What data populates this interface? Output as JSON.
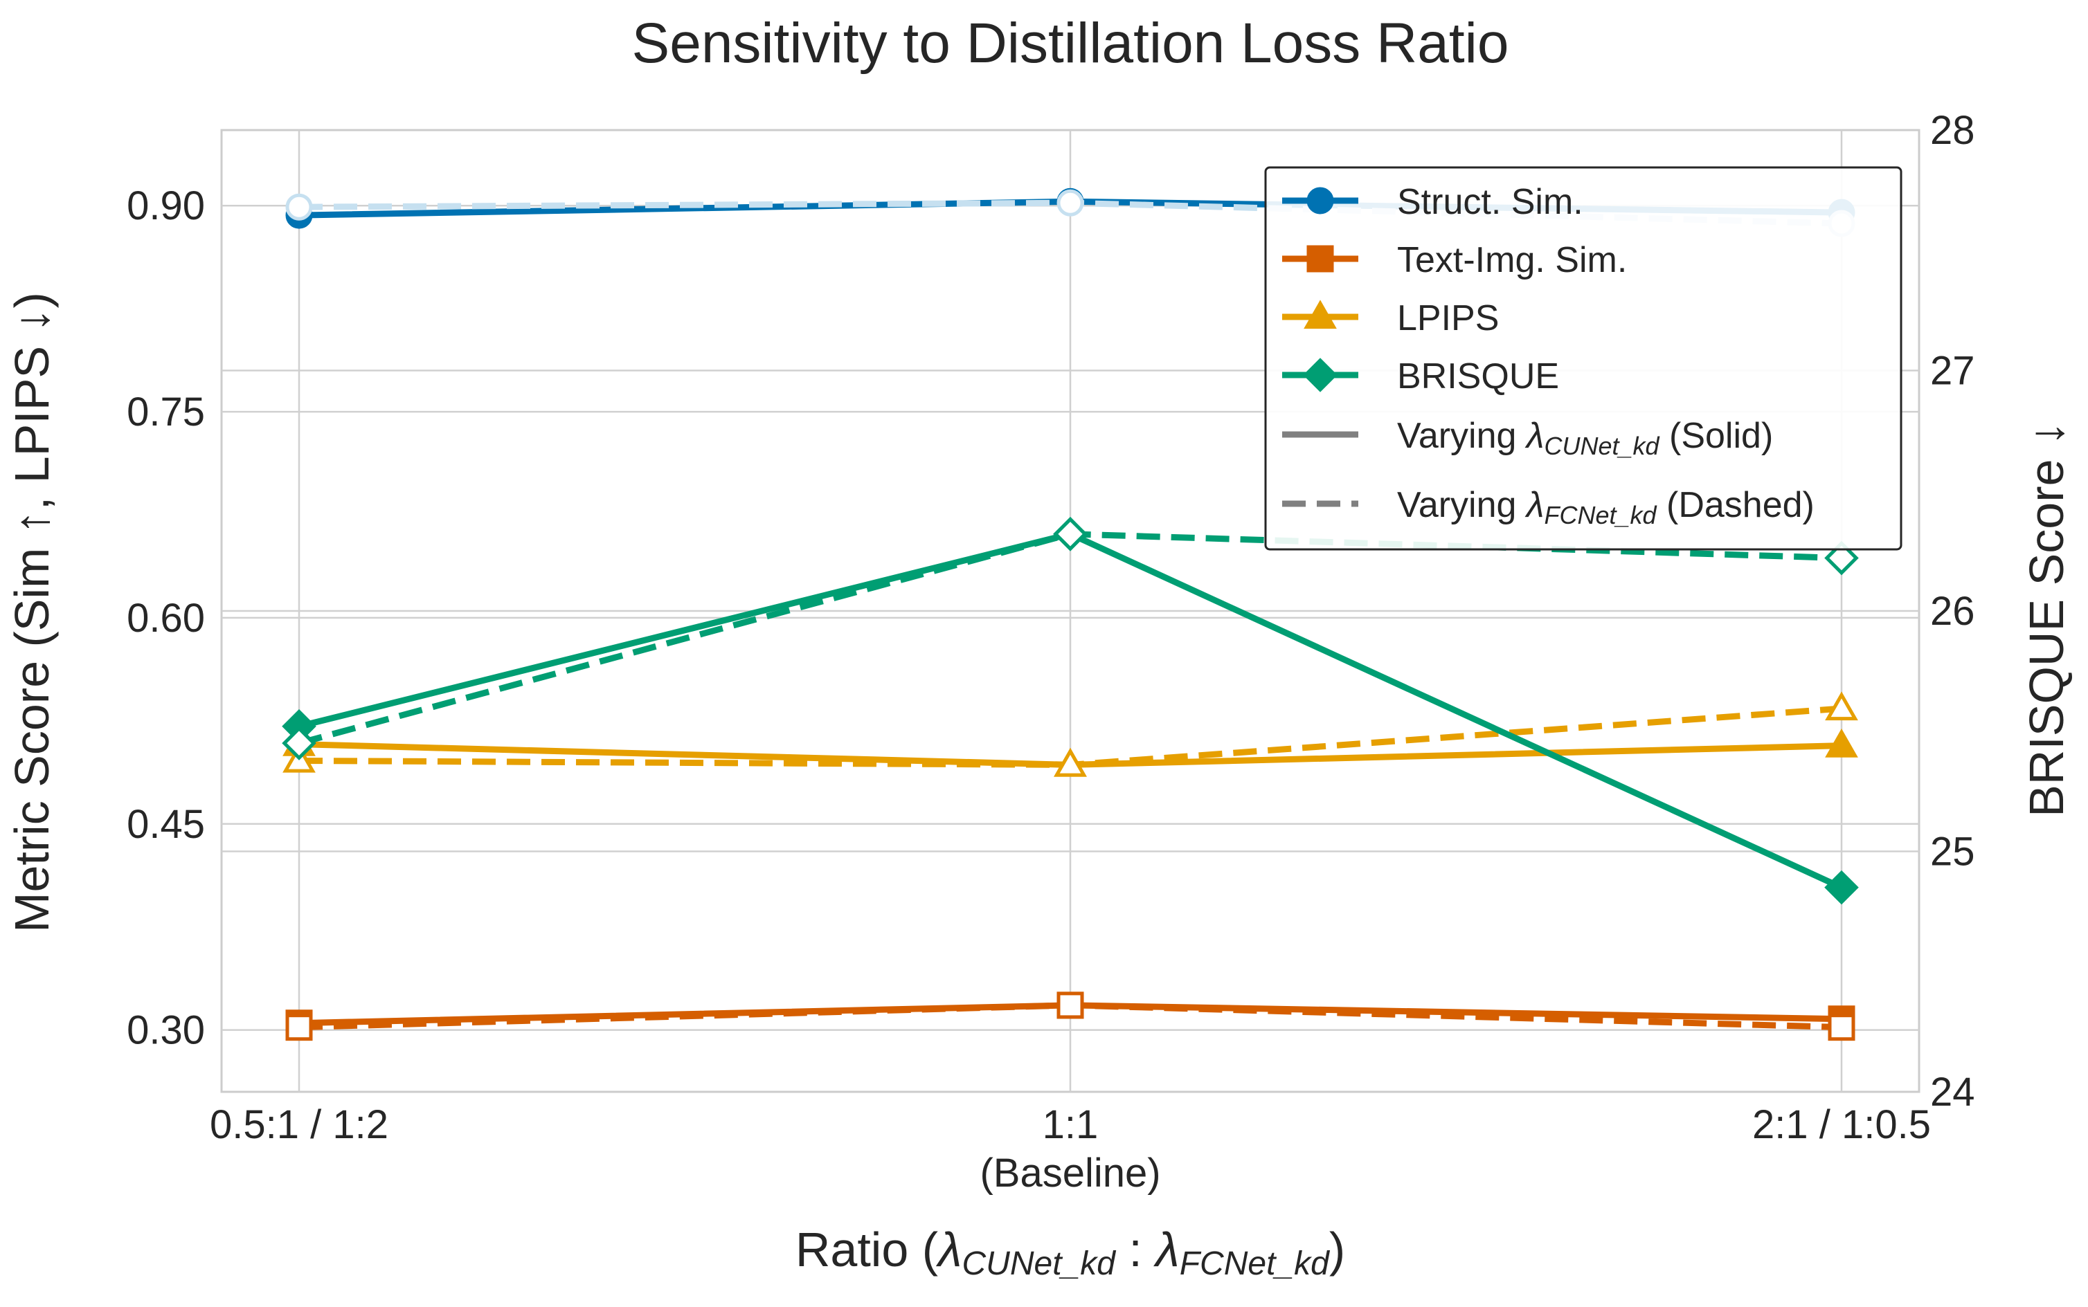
{
  "chart_data": {
    "type": "line",
    "title": "Sensitivity to Distillation Loss Ratio",
    "categories": [
      "0.5:1 / 1:2",
      "1:1",
      "2:1 / 1:0.5"
    ],
    "category_sublabels": [
      "",
      "(Baseline)",
      ""
    ],
    "xlabel": {
      "prefix": "Ratio (",
      "lambda": "λ",
      "sub1": "CUNet_kd",
      "colon": " : ",
      "sub2": "FCNet_kd",
      "suffix": ")"
    },
    "ylabel": "Metric Score (Sim ↑, LPIPS ↓)",
    "y2label": "BRISQUE Score ↓",
    "ylim": [
      0.255,
      0.955
    ],
    "yticks": [
      "0.30",
      "0.45",
      "0.60",
      "0.75",
      "0.90"
    ],
    "y2lim": [
      24,
      28
    ],
    "y2ticks": [
      "24",
      "25",
      "26",
      "27",
      "28"
    ],
    "grid": true,
    "legend_position": "top-right",
    "series": [
      {
        "name": "Struct. Sim.",
        "metric": "struct",
        "variant": "solid",
        "axis": "left",
        "color": "#0072B2",
        "marker": "circle",
        "values": [
          0.893,
          0.903,
          0.895
        ]
      },
      {
        "metric": "struct",
        "variant": "dashed",
        "axis": "left",
        "color": "#C6E0F0",
        "marker": "circle",
        "values": [
          0.899,
          0.902,
          0.887
        ]
      },
      {
        "name": "Text-Img. Sim.",
        "metric": "text",
        "variant": "solid",
        "axis": "left",
        "color": "#D55E00",
        "marker": "square",
        "values": [
          0.305,
          0.318,
          0.308
        ]
      },
      {
        "metric": "text",
        "variant": "dashed",
        "axis": "left",
        "color": "#D55E00",
        "marker": "square",
        "values": [
          0.302,
          0.318,
          0.302
        ]
      },
      {
        "name": "LPIPS",
        "metric": "lpips",
        "variant": "solid",
        "axis": "left",
        "color": "#E69F00",
        "marker": "triangle",
        "values": [
          0.508,
          0.493,
          0.507
        ]
      },
      {
        "metric": "lpips",
        "variant": "dashed",
        "axis": "left",
        "color": "#E69F00",
        "marker": "triangle",
        "values": [
          0.496,
          0.493,
          0.534
        ]
      },
      {
        "name": "BRISQUE",
        "metric": "brisque",
        "variant": "solid",
        "axis": "right",
        "color": "#009E73",
        "marker": "diamond",
        "values": [
          25.52,
          26.32,
          24.85
        ]
      },
      {
        "metric": "brisque",
        "variant": "dashed",
        "axis": "right",
        "color": "#009E73",
        "marker": "diamond",
        "values": [
          25.45,
          26.32,
          26.22
        ]
      }
    ],
    "legend": {
      "entries": [
        {
          "label": "Struct. Sim.",
          "color": "#0072B2",
          "marker": "circle",
          "style": "solid"
        },
        {
          "label": "Text-Img. Sim.",
          "color": "#D55E00",
          "marker": "square",
          "style": "solid"
        },
        {
          "label": "LPIPS",
          "color": "#E69F00",
          "marker": "triangle",
          "style": "solid"
        },
        {
          "label": "BRISQUE",
          "color": "#009E73",
          "marker": "diamond",
          "style": "solid"
        }
      ],
      "style_entries": [
        {
          "prefix": "Varying ",
          "lambda": "λ",
          "sub": "CUNet_kd",
          "suffix": " (Solid)",
          "style": "solid",
          "color": "#808080"
        },
        {
          "prefix": "Varying ",
          "lambda": "λ",
          "sub": "FCNet_kd",
          "suffix": " (Dashed)",
          "style": "dashed",
          "color": "#808080"
        }
      ]
    }
  }
}
